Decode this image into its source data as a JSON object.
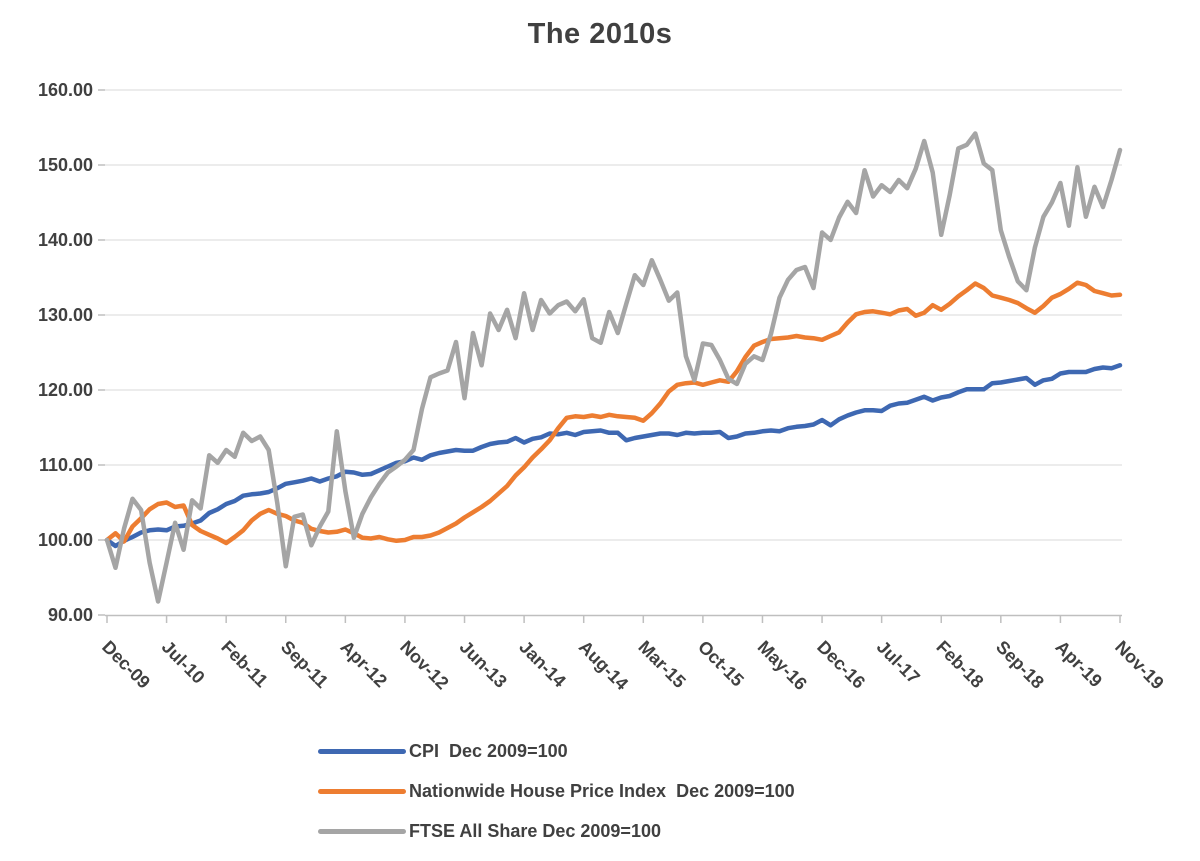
{
  "page": {
    "background": "#FFFFFF"
  },
  "chart_data": {
    "type": "line",
    "title": "The 2010s",
    "x_axis": {
      "start_month": "Dec-09",
      "end_month": "Nov-19",
      "n_points": 120,
      "tick_interval_months": 7,
      "tick_labels": [
        "Dec-09",
        "Jul-10",
        "Feb-11",
        "Sep-11",
        "Apr-12",
        "Nov-12",
        "Jun-13",
        "Jan-14",
        "Aug-14",
        "Mar-15",
        "Oct-15",
        "May-16",
        "Dec-16",
        "Jul-17",
        "Feb-18",
        "Sep-18",
        "Apr-19",
        "Nov-19"
      ]
    },
    "y_axis": {
      "min": 90,
      "max": 160,
      "step": 10,
      "tick_labels": [
        "90.00",
        "100.00",
        "110.00",
        "120.00",
        "130.00",
        "140.00",
        "150.00",
        "160.00"
      ]
    },
    "grid": "horizontal-only",
    "grid_color": "#D9D9D9",
    "axis_line_color": "#BFBFBF",
    "axis_text_color": "#404040",
    "legend": {
      "position": "bottom-center"
    },
    "series": [
      {
        "name": "CPI  Dec 2009=100",
        "color": "#3E68B2",
        "values": [
          100.0,
          99.2,
          99.9,
          100.4,
          101.0,
          101.3,
          101.4,
          101.3,
          101.8,
          101.9,
          102.2,
          102.6,
          103.6,
          104.1,
          104.8,
          105.2,
          105.9,
          106.1,
          106.2,
          106.4,
          106.9,
          107.5,
          107.7,
          107.9,
          108.2,
          107.8,
          108.2,
          108.5,
          109.1,
          109.0,
          108.7,
          108.8,
          109.3,
          109.8,
          110.3,
          110.5,
          111.0,
          110.7,
          111.3,
          111.6,
          111.8,
          112.0,
          111.9,
          111.9,
          112.4,
          112.8,
          113.0,
          113.1,
          113.6,
          113.0,
          113.5,
          113.7,
          114.2,
          114.1,
          114.3,
          114.0,
          114.4,
          114.5,
          114.6,
          114.3,
          114.3,
          113.3,
          113.6,
          113.8,
          114.0,
          114.2,
          114.2,
          114.0,
          114.3,
          114.2,
          114.3,
          114.3,
          114.4,
          113.6,
          113.8,
          114.2,
          114.3,
          114.5,
          114.6,
          114.5,
          114.9,
          115.1,
          115.2,
          115.4,
          116.0,
          115.3,
          116.1,
          116.6,
          117.0,
          117.3,
          117.3,
          117.2,
          117.9,
          118.2,
          118.3,
          118.7,
          119.1,
          118.6,
          119.0,
          119.2,
          119.7,
          120.1,
          120.1,
          120.1,
          120.9,
          121.0,
          121.2,
          121.4,
          121.6,
          120.7,
          121.3,
          121.5,
          122.2,
          122.4,
          122.4,
          122.4,
          122.8,
          123.0,
          122.9,
          123.3
        ]
      },
      {
        "name": "Nationwide House Price Index  Dec 2009=100",
        "color": "#ED7D31",
        "values": [
          100.0,
          100.9,
          99.8,
          101.8,
          102.9,
          104.1,
          104.8,
          105.0,
          104.4,
          104.6,
          102.0,
          101.2,
          100.7,
          100.2,
          99.6,
          100.4,
          101.3,
          102.6,
          103.5,
          104.0,
          103.5,
          103.2,
          102.6,
          102.3,
          101.5,
          101.2,
          101.0,
          101.1,
          101.4,
          100.9,
          100.3,
          100.2,
          100.4,
          100.1,
          99.9,
          100.0,
          100.4,
          100.4,
          100.6,
          101.0,
          101.6,
          102.2,
          103.0,
          103.7,
          104.4,
          105.2,
          106.2,
          107.2,
          108.6,
          109.7,
          111.0,
          112.1,
          113.3,
          114.9,
          116.3,
          116.5,
          116.4,
          116.6,
          116.4,
          116.7,
          116.5,
          116.4,
          116.3,
          115.9,
          116.9,
          118.2,
          119.8,
          120.7,
          120.9,
          121.0,
          120.7,
          121.0,
          121.3,
          121.1,
          122.5,
          124.4,
          125.9,
          126.4,
          126.8,
          126.9,
          127.0,
          127.2,
          127.0,
          126.9,
          126.7,
          127.2,
          127.7,
          129.0,
          130.1,
          130.4,
          130.5,
          130.3,
          130.1,
          130.6,
          130.8,
          129.9,
          130.3,
          131.3,
          130.7,
          131.5,
          132.5,
          133.3,
          134.2,
          133.6,
          132.6,
          132.3,
          132.0,
          131.6,
          130.9,
          130.3,
          131.2,
          132.3,
          132.8,
          133.5,
          134.3,
          134.0,
          133.2,
          132.9,
          132.6,
          132.7
        ]
      },
      {
        "name": "FTSE All Share Dec 2009=100",
        "color": "#A5A5A5",
        "values": [
          100.0,
          96.3,
          101.5,
          105.5,
          104.0,
          97.0,
          91.8,
          97.0,
          102.3,
          98.7,
          105.3,
          104.2,
          111.3,
          110.3,
          112.0,
          111.1,
          114.3,
          113.2,
          113.8,
          112.0,
          104.9,
          96.5,
          103.1,
          103.4,
          99.3,
          101.8,
          103.8,
          114.5,
          106.5,
          100.3,
          103.5,
          105.7,
          107.5,
          109.0,
          109.8,
          110.7,
          112.0,
          117.5,
          121.7,
          122.2,
          122.6,
          126.4,
          118.9,
          127.6,
          123.3,
          130.2,
          128.0,
          130.7,
          126.9,
          132.9,
          128.0,
          132.0,
          130.2,
          131.3,
          131.8,
          130.5,
          132.1,
          126.9,
          126.3,
          130.4,
          127.6,
          131.5,
          135.3,
          134.0,
          137.3,
          134.7,
          131.9,
          133.0,
          124.5,
          121.3,
          126.2,
          126.0,
          124.0,
          121.5,
          120.8,
          123.5,
          124.5,
          124.0,
          127.5,
          132.3,
          134.7,
          136.0,
          136.4,
          133.6,
          141.0,
          140.0,
          143.0,
          145.1,
          143.6,
          149.3,
          145.8,
          147.3,
          146.4,
          148.0,
          146.9,
          149.5,
          153.2,
          149.0,
          140.7,
          146.0,
          152.2,
          152.7,
          154.2,
          150.2,
          149.3,
          141.3,
          137.7,
          134.5,
          133.3,
          139.0,
          143.1,
          145.0,
          147.6,
          141.9,
          149.7,
          143.1,
          147.1,
          144.4,
          148.0,
          152.0
        ]
      }
    ]
  }
}
